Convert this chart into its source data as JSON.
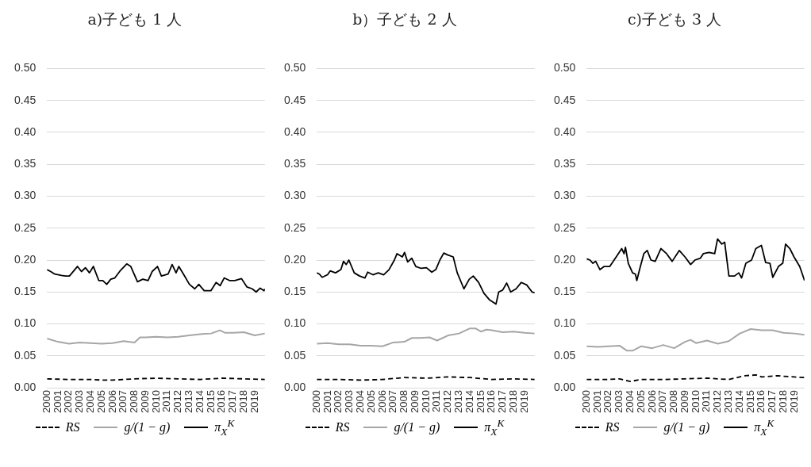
{
  "chart_data": [
    {
      "type": "line",
      "title": "a)子ども 1 人",
      "xlim": [
        2000,
        2019.92
      ],
      "xticks": [
        2000,
        2001,
        2002,
        2003,
        2004,
        2005,
        2006,
        2007,
        2008,
        2009,
        2010,
        2011,
        2012,
        2013,
        2014,
        2015,
        2016,
        2017,
        2018,
        2019
      ],
      "ylim": [
        0,
        0.5
      ],
      "yticks": [
        {
          "value": 0,
          "label": "0.00"
        },
        {
          "value": 0.05,
          "label": "0.05"
        },
        {
          "value": 0.1,
          "label": "0.10"
        },
        {
          "value": 0.15,
          "label": "0.15"
        },
        {
          "value": 0.2,
          "label": "0.20"
        },
        {
          "value": 0.25,
          "label": "0.25"
        },
        {
          "value": 0.3,
          "label": "0.30"
        },
        {
          "value": 0.35,
          "label": "0.35"
        },
        {
          "value": 0.4,
          "label": "0.40"
        },
        {
          "value": 0.45,
          "label": "0.45"
        },
        {
          "value": 0.5,
          "label": "0.50"
        }
      ],
      "grid": "y",
      "legend": "bottom",
      "marker": "none",
      "series": [
        {
          "name": "RS",
          "color": "#000000",
          "line_style": "dashed",
          "x": [
            2000,
            2002,
            2004,
            2005,
            2006,
            2008,
            2010,
            2012,
            2014,
            2016,
            2018,
            2019.92
          ],
          "values": [
            0.014,
            0.013,
            0.013,
            0.012,
            0.012,
            0.014,
            0.015,
            0.014,
            0.013,
            0.015,
            0.014,
            0.013
          ]
        },
        {
          "name": "g/(1 − g)",
          "color": "#a6a6a6",
          "line_style": "solid",
          "x": [
            2000,
            2001,
            2002,
            2003,
            2004,
            2005,
            2006,
            2007,
            2008,
            2008.5,
            2009,
            2010,
            2011,
            2012,
            2013,
            2014,
            2015,
            2015.8,
            2016.3,
            2017,
            2018,
            2019,
            2019.92
          ],
          "values": [
            0.077,
            0.072,
            0.069,
            0.071,
            0.07,
            0.069,
            0.07,
            0.073,
            0.071,
            0.079,
            0.079,
            0.08,
            0.079,
            0.08,
            0.082,
            0.084,
            0.085,
            0.09,
            0.086,
            0.086,
            0.087,
            0.082,
            0.085
          ]
        },
        {
          "name": "π$_{X}$$^{K}$",
          "color": "#000000",
          "line_style": "solid",
          "x": [
            2000,
            2000.34,
            2000.71,
            2001.32,
            2001.68,
            2002.05,
            2002.78,
            2003.15,
            2003.51,
            2003.88,
            2004.24,
            2004.73,
            2005.1,
            2005.46,
            2005.83,
            2006.2,
            2006.68,
            2007.29,
            2007.66,
            2008.27,
            2008.76,
            2009.24,
            2009.61,
            2010.1,
            2010.46,
            2011.07,
            2011.44,
            2011.8,
            2012.05,
            2012.54,
            2013.02,
            2013.51,
            2013.88,
            2014.37,
            2014.98,
            2015.46,
            2015.83,
            2016.2,
            2016.68,
            2017.17,
            2017.78,
            2018.27,
            2018.76,
            2019.12,
            2019.49,
            2019.85,
            2019.92
          ],
          "values": [
            0.185,
            0.182,
            0.178,
            0.176,
            0.175,
            0.175,
            0.19,
            0.182,
            0.188,
            0.18,
            0.19,
            0.168,
            0.168,
            0.162,
            0.17,
            0.172,
            0.183,
            0.194,
            0.19,
            0.166,
            0.17,
            0.168,
            0.182,
            0.19,
            0.175,
            0.178,
            0.193,
            0.18,
            0.19,
            0.176,
            0.162,
            0.155,
            0.162,
            0.152,
            0.152,
            0.165,
            0.16,
            0.172,
            0.168,
            0.168,
            0.171,
            0.158,
            0.155,
            0.15,
            0.156,
            0.152,
            0.155
          ]
        }
      ]
    },
    {
      "type": "line",
      "title": "b）子ども 2 人",
      "xlim": [
        2000,
        2019.92
      ],
      "xticks": [
        2000,
        2001,
        2002,
        2003,
        2004,
        2005,
        2006,
        2007,
        2008,
        2009,
        2010,
        2011,
        2012,
        2013,
        2014,
        2015,
        2016,
        2017,
        2018,
        2019
      ],
      "ylim": [
        0,
        0.5
      ],
      "yticks": [
        {
          "value": 0,
          "label": "0.00"
        },
        {
          "value": 0.05,
          "label": "0.05"
        },
        {
          "value": 0.1,
          "label": "0.10"
        },
        {
          "value": 0.15,
          "label": "0.15"
        },
        {
          "value": 0.2,
          "label": "0.20"
        },
        {
          "value": 0.25,
          "label": "0.25"
        },
        {
          "value": 0.3,
          "label": "0.30"
        },
        {
          "value": 0.35,
          "label": "0.35"
        },
        {
          "value": 0.4,
          "label": "0.40"
        },
        {
          "value": 0.45,
          "label": "0.45"
        },
        {
          "value": 0.5,
          "label": "0.50"
        }
      ],
      "grid": "y",
      "legend": "bottom",
      "marker": "none",
      "series": [
        {
          "name": "RS",
          "color": "#000000",
          "line_style": "dashed",
          "x": [
            2000,
            2002,
            2004,
            2006,
            2008,
            2010,
            2012,
            2014,
            2016,
            2018,
            2019.92
          ],
          "values": [
            0.013,
            0.013,
            0.012,
            0.013,
            0.016,
            0.015,
            0.017,
            0.016,
            0.013,
            0.014,
            0.013
          ]
        },
        {
          "name": "g/(1 − g)",
          "color": "#a6a6a6",
          "line_style": "solid",
          "x": [
            2000,
            2001,
            2002,
            2003,
            2004,
            2005,
            2006,
            2007,
            2008,
            2008.7,
            2009.5,
            2010.3,
            2011,
            2012,
            2013,
            2014,
            2014.5,
            2015,
            2015.5,
            2016,
            2017,
            2018,
            2019,
            2019.92
          ],
          "values": [
            0.069,
            0.07,
            0.068,
            0.068,
            0.066,
            0.066,
            0.065,
            0.071,
            0.072,
            0.078,
            0.078,
            0.079,
            0.074,
            0.082,
            0.085,
            0.093,
            0.093,
            0.088,
            0.091,
            0.09,
            0.087,
            0.088,
            0.086,
            0.085
          ]
        },
        {
          "name": "π$_{X}$$^{K}$",
          "color": "#000000",
          "line_style": "solid",
          "x": [
            2000,
            2000.24,
            2000.49,
            2000.98,
            2001.22,
            2001.71,
            2002.2,
            2002.44,
            2002.69,
            2002.93,
            2003.42,
            2003.91,
            2004.4,
            2004.65,
            2005.13,
            2005.62,
            2006.11,
            2006.6,
            2007.09,
            2007.33,
            2007.82,
            2008.02,
            2008.31,
            2008.68,
            2009.05,
            2009.54,
            2010.02,
            2010.51,
            2010.88,
            2011.25,
            2011.61,
            2011.98,
            2012.47,
            2012.84,
            2013.45,
            2013.94,
            2014.3,
            2014.79,
            2015.28,
            2015.77,
            2016.38,
            2016.63,
            2016.99,
            2017.36,
            2017.73,
            2018.22,
            2018.7,
            2019.19,
            2019.68,
            2019.92
          ],
          "values": [
            0.18,
            0.178,
            0.173,
            0.177,
            0.183,
            0.18,
            0.185,
            0.198,
            0.193,
            0.2,
            0.18,
            0.175,
            0.172,
            0.181,
            0.177,
            0.18,
            0.177,
            0.185,
            0.2,
            0.21,
            0.205,
            0.212,
            0.197,
            0.203,
            0.19,
            0.187,
            0.188,
            0.181,
            0.185,
            0.2,
            0.211,
            0.208,
            0.205,
            0.18,
            0.155,
            0.17,
            0.175,
            0.165,
            0.148,
            0.138,
            0.131,
            0.15,
            0.153,
            0.164,
            0.15,
            0.155,
            0.165,
            0.161,
            0.15,
            0.149
          ]
        }
      ]
    },
    {
      "type": "line",
      "title": "c)子ども 3 人",
      "xlim": [
        2000,
        2019.92
      ],
      "xticks": [
        2000,
        2001,
        2002,
        2003,
        2004,
        2005,
        2006,
        2007,
        2008,
        2009,
        2010,
        2011,
        2012,
        2013,
        2014,
        2015,
        2016,
        2017,
        2018,
        2019
      ],
      "ylim": [
        0,
        0.5
      ],
      "yticks": [
        {
          "value": 0,
          "label": "0.00"
        },
        {
          "value": 0.05,
          "label": "0.05"
        },
        {
          "value": 0.1,
          "label": "0.10"
        },
        {
          "value": 0.15,
          "label": "0.15"
        },
        {
          "value": 0.2,
          "label": "0.20"
        },
        {
          "value": 0.25,
          "label": "0.25"
        },
        {
          "value": 0.3,
          "label": "0.30"
        },
        {
          "value": 0.35,
          "label": "0.35"
        },
        {
          "value": 0.4,
          "label": "0.40"
        },
        {
          "value": 0.45,
          "label": "0.45"
        },
        {
          "value": 0.5,
          "label": "0.50"
        }
      ],
      "grid": "y",
      "legend": "bottom",
      "marker": "none",
      "series": [
        {
          "name": "RS",
          "color": "#000000",
          "line_style": "dashed",
          "x": [
            2000,
            2002,
            2003,
            2004,
            2005,
            2007,
            2009,
            2011,
            2013,
            2014.5,
            2015.5,
            2016,
            2017.5,
            2018,
            2019.92
          ],
          "values": [
            0.013,
            0.013,
            0.014,
            0.01,
            0.013,
            0.013,
            0.014,
            0.015,
            0.013,
            0.019,
            0.02,
            0.017,
            0.019,
            0.018,
            0.016
          ]
        },
        {
          "name": "g/(1 − g)",
          "color": "#a6a6a6",
          "line_style": "solid",
          "x": [
            2000,
            2001,
            2002,
            2003,
            2003.7,
            2004.2,
            2005,
            2006,
            2007,
            2008,
            2009,
            2009.5,
            2010,
            2011,
            2012,
            2013,
            2014,
            2015,
            2016,
            2017,
            2018,
            2019,
            2019.92
          ],
          "values": [
            0.065,
            0.064,
            0.065,
            0.066,
            0.058,
            0.058,
            0.065,
            0.062,
            0.067,
            0.062,
            0.072,
            0.075,
            0.07,
            0.074,
            0.069,
            0.073,
            0.085,
            0.092,
            0.09,
            0.09,
            0.086,
            0.085,
            0.083
          ]
        },
        {
          "name": "π$_{X}$$^{K}$",
          "color": "#000000",
          "line_style": "solid",
          "x": [
            2000,
            2000.31,
            2000.57,
            2000.83,
            2001.22,
            2001.61,
            2002.12,
            2002.51,
            2002.9,
            2003.21,
            2003.42,
            2003.55,
            2003.81,
            2004.2,
            2004.46,
            2004.59,
            2004.84,
            2005.23,
            2005.54,
            2005.88,
            2006.27,
            2006.79,
            2007.31,
            2007.82,
            2008.47,
            2008.99,
            2009.51,
            2009.9,
            2010.41,
            2010.67,
            2011.19,
            2011.71,
            2011.97,
            2012.36,
            2012.62,
            2013.01,
            2013.52,
            2013.91,
            2014.17,
            2014.56,
            2015.08,
            2015.47,
            2015.98,
            2016.37,
            2016.76,
            2017.02,
            2017.54,
            2017.93,
            2018.19,
            2018.58,
            2018.96,
            2019.48,
            2019.92
          ],
          "values": [
            0.202,
            0.2,
            0.195,
            0.198,
            0.185,
            0.19,
            0.19,
            0.2,
            0.21,
            0.218,
            0.21,
            0.22,
            0.195,
            0.18,
            0.178,
            0.168,
            0.185,
            0.21,
            0.215,
            0.2,
            0.198,
            0.218,
            0.21,
            0.198,
            0.215,
            0.205,
            0.193,
            0.2,
            0.203,
            0.21,
            0.212,
            0.21,
            0.233,
            0.225,
            0.228,
            0.175,
            0.175,
            0.18,
            0.172,
            0.195,
            0.2,
            0.218,
            0.223,
            0.196,
            0.195,
            0.173,
            0.19,
            0.195,
            0.225,
            0.218,
            0.205,
            0.19,
            0.168
          ]
        }
      ]
    }
  ]
}
